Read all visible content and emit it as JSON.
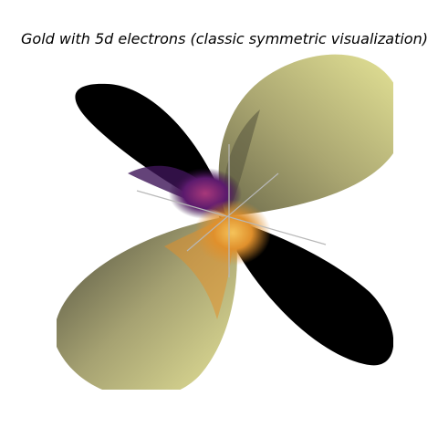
{
  "title": "Gold with 5d electrons (classic symmetric visualization)",
  "colors": {
    "background": "#ffffff",
    "negative_lobe": "#000000",
    "positive_lobe_light": "#e6e597",
    "positive_lobe_dark": "#4b4a3b",
    "core_warm": "#e0902c",
    "core_purple": "#5b1a6d",
    "axis_line": "#b8b8b8"
  },
  "icons": [
    "orbital-lobes"
  ]
}
